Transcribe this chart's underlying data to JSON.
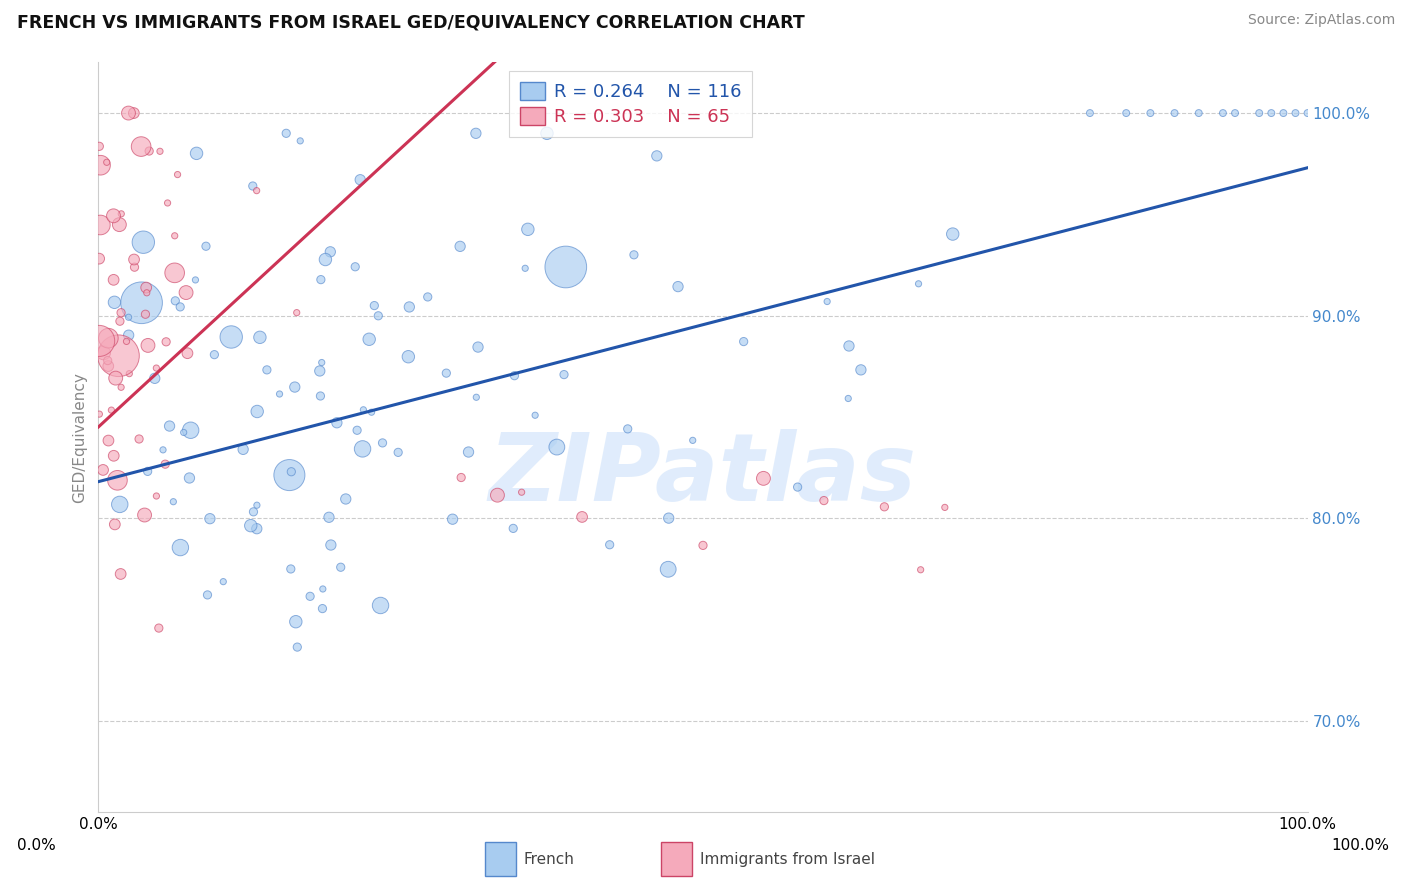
{
  "title": "FRENCH VS IMMIGRANTS FROM ISRAEL GED/EQUIVALENCY CORRELATION CHART",
  "source": "Source: ZipAtlas.com",
  "ylabel": "GED/Equivalency",
  "xmin": 0.0,
  "xmax": 1.0,
  "ymin": 0.655,
  "ymax": 1.025,
  "blue_R": 0.264,
  "blue_N": 116,
  "pink_R": 0.303,
  "pink_N": 65,
  "blue_color": "#A8CCF0",
  "pink_color": "#F5AABB",
  "blue_edge_color": "#5588CC",
  "pink_edge_color": "#CC4466",
  "blue_line_color": "#2255AA",
  "pink_line_color": "#CC3355",
  "watermark_text": "ZIPatlas",
  "watermark_color": "#C8DEFA",
  "legend_label_blue": "French",
  "legend_label_pink": "Immigrants from Israel",
  "ytick_positions": [
    0.7,
    0.8,
    0.9,
    1.0
  ],
  "ytick_labels": [
    "70.0%",
    "80.0%",
    "90.0%",
    "100.0%"
  ],
  "ytick_color": "#4488CC",
  "blue_line_intercept": 0.818,
  "blue_line_slope": 0.155,
  "pink_line_intercept": 0.845,
  "pink_line_slope": 0.55,
  "seed_blue": 42,
  "seed_pink": 7,
  "seed_size_blue": 123,
  "seed_size_pink": 456
}
